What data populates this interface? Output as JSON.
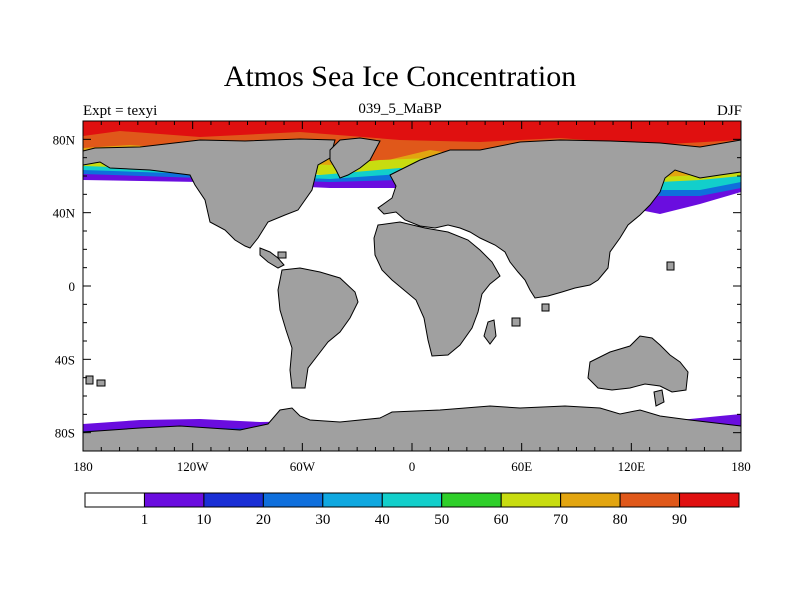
{
  "title": "Atmos Sea Ice Concentration",
  "subtitle": "039_5_MaBP",
  "left_label": "Expt = texyi",
  "right_label": "DJF",
  "lon_ticks": [
    {
      "lon": -180,
      "label": "180"
    },
    {
      "lon": -120,
      "label": "120W"
    },
    {
      "lon": -60,
      "label": "60W"
    },
    {
      "lon": 0,
      "label": "0"
    },
    {
      "lon": 60,
      "label": "60E"
    },
    {
      "lon": 120,
      "label": "120E"
    },
    {
      "lon": 180,
      "label": "180"
    }
  ],
  "lat_ticks": [
    {
      "lat": 80,
      "label": "80N"
    },
    {
      "lat": 40,
      "label": "40N"
    },
    {
      "lat": 0,
      "label": "0"
    },
    {
      "lat": -40,
      "label": "40S"
    },
    {
      "lat": -80,
      "label": "80S"
    }
  ],
  "colorbar": {
    "levels": [
      "1",
      "10",
      "20",
      "30",
      "40",
      "50",
      "60",
      "70",
      "80",
      "90"
    ],
    "colors": [
      "#ffffff",
      "#6a0ddf",
      "#1a2fd6",
      "#0f6fdc",
      "#10a8e0",
      "#12cfcb",
      "#2fcf2a",
      "#c8dc10",
      "#e2a510",
      "#e0581a",
      "#e01010"
    ]
  },
  "land_color": "#a0a0a0"
}
